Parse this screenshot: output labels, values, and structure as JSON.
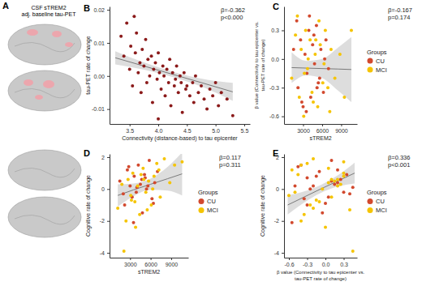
{
  "panel_a": {
    "label": "A",
    "lines": [
      "CSF sTREM2",
      "adj. baseline tau-PET"
    ]
  },
  "chart_data": [
    {
      "type": "scatter",
      "title": "B",
      "x_label": [
        "Connectivity (distance-based) to tau epicenter"
      ],
      "y_label": [
        "tau-PET rate of change"
      ],
      "annotations": [
        "β=-0.362",
        "p<0.000"
      ],
      "xlim": [
        3.15,
        5.6
      ],
      "xticks": [
        3.5,
        {
          "value": 4,
          "label": "4.0"
        },
        4.5,
        {
          "value": 5,
          "label": "5.0"
        },
        5.5
      ],
      "ylim": [
        -0.0145,
        0.021
      ],
      "yticks": [
        -0.01,
        {
          "value": 0,
          "label": "0.00"
        },
        0.01,
        0.02
      ],
      "series": [
        {
          "color": "#8b1a1a",
          "x": [
            3.35,
            3.4,
            3.45,
            3.5,
            3.52,
            3.55,
            3.6,
            3.62,
            3.65,
            3.68,
            3.7,
            3.72,
            3.75,
            3.78,
            3.8,
            3.82,
            3.85,
            3.88,
            3.9,
            3.92,
            3.95,
            3.98,
            4.0,
            4.02,
            4.05,
            4.08,
            4.1,
            4.12,
            4.15,
            4.18,
            4.2,
            4.22,
            4.25,
            4.28,
            4.3,
            4.32,
            4.35,
            4.38,
            4.4,
            4.42,
            4.45,
            4.48,
            4.5,
            4.55,
            4.6,
            4.62,
            4.65,
            4.7,
            4.75,
            4.8,
            4.85,
            4.9,
            4.95,
            5.0,
            5.05,
            5.1,
            5.2,
            5.3,
            3.58,
            4.0
          ],
          "values": [
            0.012,
            0.006,
            0.016,
            0.002,
            0.009,
            -0.003,
            0.007,
            0.013,
            0.001,
            0.004,
            -0.005,
            0.008,
            0.003,
            0.011,
            -0.002,
            0.005,
            0,
            0.006,
            -0.008,
            0.002,
            0.004,
            -0.001,
            0.007,
            0.001,
            -0.004,
            0.003,
            0,
            -0.006,
            0.002,
            -0.002,
            0.005,
            -0.009,
            0.001,
            -0.003,
            -0.001,
            0.003,
            -0.005,
            0,
            -0.002,
            -0.011,
            0.001,
            -0.004,
            -0.003,
            -0.006,
            -0.002,
            -0.008,
            0,
            -0.005,
            -0.003,
            -0.007,
            -0.01,
            -0.004,
            -0.006,
            -0.002,
            -0.009,
            -0.005,
            -0.007,
            -0.012,
            0.018,
            -0.013
          ]
        }
      ],
      "fit": {
        "x": [
          3.25,
          3.75,
          4.25,
          4.75,
          5.3
        ],
        "values": [
          0.0055,
          0.003,
          0.0005,
          -0.002,
          -0.0048
        ],
        "lower": [
          0.0035,
          0.0019,
          -0.0003,
          -0.0032,
          -0.0075
        ],
        "upper": [
          0.0075,
          0.0041,
          0.0013,
          -0.0008,
          -0.0021
        ]
      }
    },
    {
      "type": "scatter",
      "title": "C",
      "x_label": [
        "sTREM2"
      ],
      "y_label": [
        "β value (Connectivity to tau epicenter vs.",
        "tau-PET rate of change)"
      ],
      "annotations": [
        "β=-0.167",
        "p=0.174"
      ],
      "legend": "right",
      "legend_title": "Groups",
      "xlim": [
        0,
        11500
      ],
      "xticks": [
        3000,
        6000,
        9000
      ],
      "ylim": [
        -0.68,
        0.55
      ],
      "yticks": [
        -0.6,
        -0.3,
        {
          "value": 0,
          "label": "0.0"
        },
        0.3
      ],
      "series": [
        {
          "name": "CU",
          "color": "#d2492e",
          "x": [
            1500,
            2200,
            2600,
            3000,
            3300,
            3600,
            3900,
            4200,
            4500,
            4800,
            5100,
            5400,
            5800,
            6200,
            6600,
            7000,
            2000,
            3500,
            4700,
            5600,
            6400,
            2800,
            4000,
            5200
          ],
          "values": [
            0.1,
            -0.3,
            0.2,
            -0.5,
            0.05,
            -0.15,
            0.3,
            -0.4,
            0.15,
            -0.05,
            0.35,
            -0.25,
            0.1,
            -0.35,
            0.2,
            -0.1,
            0.4,
            -0.55,
            0.25,
            -0.2,
            0,
            -0.45,
            0.45,
            -0.3
          ]
        },
        {
          "name": "MCI",
          "color": "#f5c400",
          "x": [
            1200,
            1800,
            2400,
            2700,
            3100,
            3400,
            3700,
            4100,
            4400,
            4900,
            5300,
            5700,
            6100,
            6500,
            6900,
            7400,
            8000,
            8800,
            9500,
            10600,
            2100,
            3200,
            4600,
            5500,
            6300,
            7200,
            3800,
            5000
          ],
          "values": [
            -0.2,
            0.25,
            -0.4,
            0.1,
            -0.6,
            0.3,
            -0.1,
            0.2,
            -0.35,
            0.05,
            -0.5,
            0.15,
            -0.25,
            0.3,
            -0.3,
            0.1,
            -0.2,
            0.05,
            -0.4,
            0.3,
            0.45,
            -0.15,
            -0.45,
            0.4,
            -0.05,
            -0.55,
            0,
            0.2
          ]
        }
      ],
      "fit": {
        "x": [
          1200,
          3500,
          6000,
          8500,
          10600
        ],
        "values": [
          -0.09,
          -0.095,
          -0.1,
          -0.105,
          -0.11
        ],
        "lower": [
          -0.25,
          -0.17,
          -0.2,
          -0.33,
          -0.45
        ],
        "upper": [
          0.07,
          -0.02,
          0,
          0.12,
          0.23
        ]
      }
    },
    {
      "type": "scatter",
      "title": "D",
      "x_label": [
        "sTREM2"
      ],
      "y_label": [
        "Cognitive rate of change"
      ],
      "annotations": [
        "β=0.117",
        "p=0.311"
      ],
      "legend": "right",
      "legend_title": "Groups",
      "xlim": [
        0,
        11500
      ],
      "xticks": [
        3000,
        6000,
        9000
      ],
      "ylim": [
        -4.3,
        2.2
      ],
      "yticks": [
        -4,
        -2,
        0,
        2
      ],
      "series": [
        {
          "name": "CU",
          "color": "#d2492e",
          "x": [
            1500,
            2200,
            2600,
            3000,
            3300,
            3600,
            3900,
            4200,
            4500,
            4800,
            5100,
            5400,
            5800,
            6200,
            6600,
            7000,
            2000,
            3500,
            4700,
            5600,
            6400,
            2800,
            4000,
            5200
          ],
          "values": [
            0.5,
            -1.0,
            1.2,
            0.2,
            -0.5,
            0.8,
            -0.2,
            1.5,
            0.3,
            -1.5,
            0.9,
            0,
            1.8,
            -0.6,
            0.4,
            1.1,
            -0.3,
            -2.1,
            0.6,
            0.2,
            -0.9,
            1.4,
            0.1,
            0.7
          ]
        },
        {
          "name": "MCI",
          "color": "#f5c400",
          "x": [
            1200,
            1800,
            2400,
            2700,
            3100,
            3400,
            3700,
            4100,
            4400,
            4900,
            5300,
            5700,
            6100,
            6500,
            6900,
            7400,
            8000,
            8800,
            9500,
            10600,
            2100,
            3200,
            4600,
            5500,
            6300,
            7200,
            3800,
            5000
          ],
          "values": [
            -1.2,
            0.3,
            -2.0,
            0.6,
            -0.4,
            1.0,
            -0.8,
            0.2,
            -1.6,
            1.3,
            -0.2,
            0.5,
            -1.0,
            0.8,
            1.6,
            -0.5,
            1.9,
            0.4,
            1.5,
            1.7,
            -3.9,
            -0.7,
            0.9,
            -1.3,
            0,
            1.2,
            -2.4,
            0.6
          ]
        }
      ],
      "fit": {
        "x": [
          1200,
          3500,
          6000,
          8500,
          10600
        ],
        "values": [
          -0.4,
          -0.05,
          0.3,
          0.65,
          0.95
        ],
        "lower": [
          -1.1,
          -0.45,
          -0.05,
          -0.1,
          -0.4
        ],
        "upper": [
          0.3,
          0.35,
          0.65,
          1.4,
          2.3
        ]
      }
    },
    {
      "type": "scatter",
      "title": "E",
      "x_label": [
        "β value (Connectivity to tau epicenter vs.",
        "tau-PET rate of change)"
      ],
      "y_label": [
        "Cognitive rate of change"
      ],
      "annotations": [
        "β=0.336",
        "p<0.001"
      ],
      "legend": "right",
      "legend_title": "Groups",
      "xlim": [
        -0.68,
        0.52
      ],
      "xticks": [
        -0.6,
        -0.3,
        {
          "value": 0,
          "label": "0.0"
        },
        0.3
      ],
      "ylim": [
        -4.3,
        2.2
      ],
      "yticks": [
        -4,
        -2,
        0,
        2
      ],
      "series": [
        {
          "name": "CU",
          "color": "#d2492e",
          "x": [
            0.1,
            -0.3,
            0.2,
            -0.5,
            0.05,
            -0.15,
            0.3,
            -0.4,
            0.15,
            -0.05,
            0.35,
            -0.25,
            0.1,
            -0.35,
            0.2,
            -0.1,
            0.4,
            -0.55,
            0.25,
            -0.2,
            0,
            -0.45,
            0.45,
            -0.3
          ],
          "values": [
            0.5,
            -1.0,
            1.2,
            0.2,
            -0.5,
            0.8,
            -0.2,
            1.5,
            0.3,
            -1.5,
            0.9,
            0,
            1.8,
            -0.6,
            0.4,
            1.1,
            -0.3,
            -2.1,
            0.6,
            0.2,
            -0.9,
            1.4,
            0.1,
            0.7
          ]
        },
        {
          "name": "MCI",
          "color": "#f5c400",
          "x": [
            -0.2,
            0.25,
            -0.4,
            0.1,
            -0.6,
            0.3,
            -0.1,
            0.2,
            -0.35,
            0.05,
            -0.5,
            0.15,
            -0.25,
            0.3,
            -0.3,
            0.1,
            -0.2,
            0.05,
            -0.4,
            0.3,
            0.45,
            -0.15,
            -0.45,
            0.4,
            -0.05,
            -0.55,
            0,
            0.2
          ],
          "values": [
            -1.2,
            0.3,
            -2.0,
            0.6,
            -0.4,
            1.0,
            -0.8,
            0.2,
            -1.6,
            1.3,
            -0.2,
            0.5,
            -1.0,
            0.8,
            1.6,
            -0.5,
            1.9,
            0.4,
            1.5,
            1.7,
            -3.9,
            -0.7,
            0.9,
            -1.3,
            0,
            1.2,
            -2.4,
            0.6
          ]
        }
      ],
      "fit": {
        "x": [
          -0.62,
          -0.35,
          -0.08,
          0.2,
          0.48
        ],
        "values": [
          -1.0,
          -0.5,
          0,
          0.5,
          1.0
        ],
        "lower": [
          -1.6,
          -0.85,
          -0.25,
          0.15,
          0.35
        ],
        "upper": [
          -0.4,
          -0.15,
          0.25,
          0.85,
          1.65
        ]
      }
    }
  ]
}
